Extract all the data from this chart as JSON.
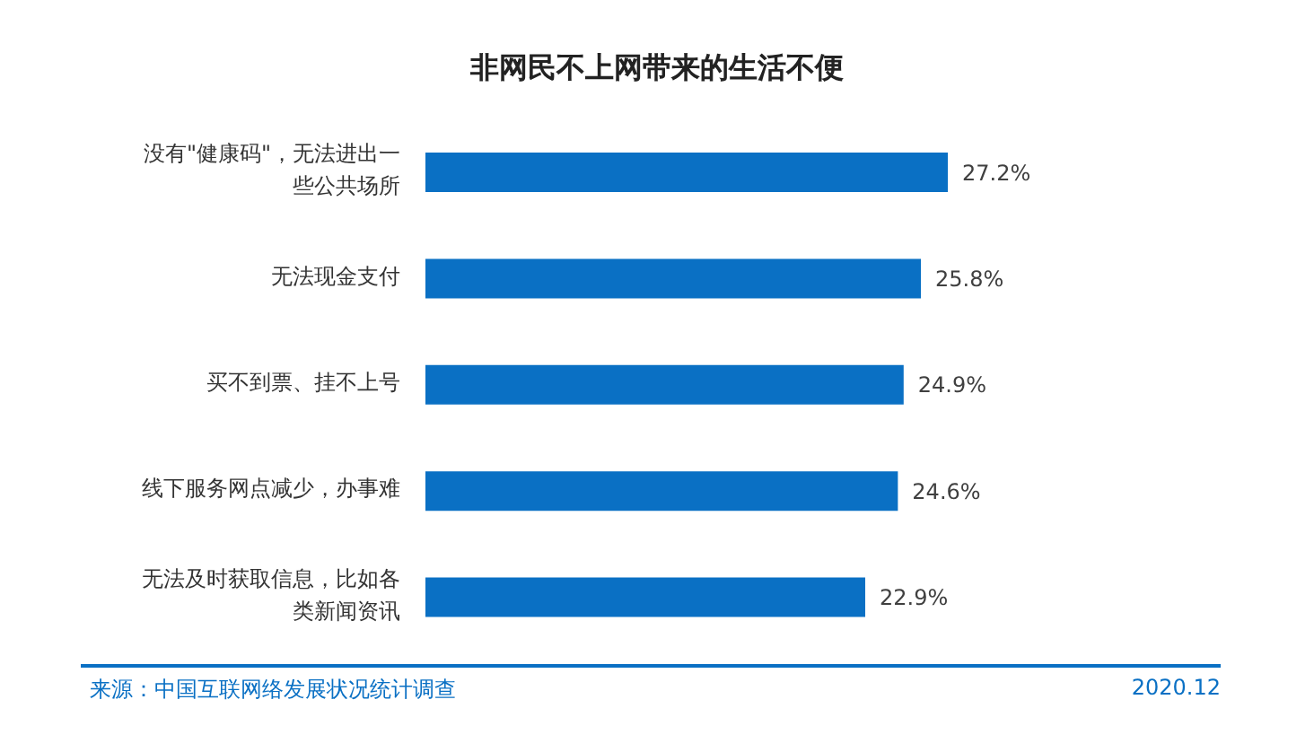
{
  "chart_data": {
    "type": "bar",
    "orientation": "horizontal",
    "title": "非网民不上网带来的生活不便",
    "categories": [
      "没有\"健康码\"，无法进出一些公共场所",
      "无法现金支付",
      "买不到票、挂不上号",
      "线下服务网点减少，办事难",
      "无法及时获取信息，比如各类新闻资讯"
    ],
    "values": [
      27.2,
      25.8,
      24.9,
      24.6,
      22.9
    ],
    "value_labels": [
      "27.2%",
      "25.8%",
      "24.9%",
      "24.6%",
      "22.9%"
    ],
    "color": "#0a70c4",
    "annotations": [
      "来源：中国互联网络发展状况统计调查",
      "2020.12"
    ]
  }
}
